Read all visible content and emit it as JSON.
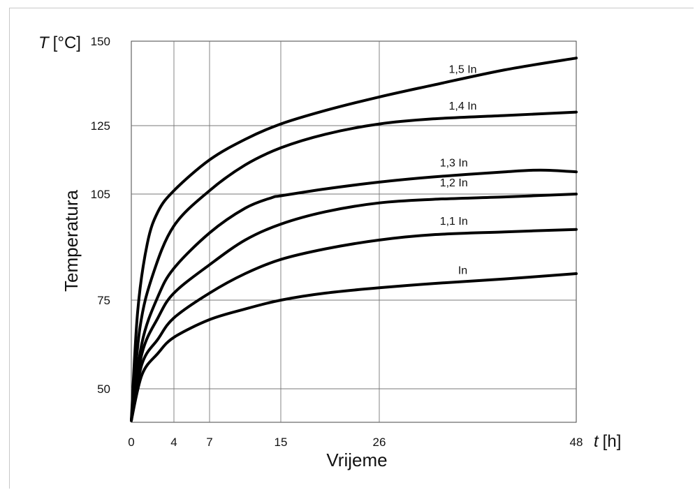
{
  "chart_data": {
    "type": "line",
    "title": "",
    "xlabel": "Vrijeme",
    "ylabel": "Temperatura",
    "x_unit": {
      "symbol": "t",
      "unit": "[h]"
    },
    "y_unit": {
      "symbol": "T",
      "unit": "[°C]"
    },
    "x_ticks": [
      0,
      4,
      7,
      15,
      26,
      48
    ],
    "y_ticks": [
      50,
      75,
      105,
      125,
      150
    ],
    "xlim": [
      0,
      48
    ],
    "ylim": [
      40.5,
      150
    ],
    "grid": true,
    "legend": "none (labels placed on curves)",
    "series": [
      {
        "name": "1,5 In",
        "points": [
          [
            0,
            41
          ],
          [
            0.6,
            72
          ],
          [
            1.5,
            91
          ],
          [
            2.5,
            100
          ],
          [
            4,
            106
          ],
          [
            7,
            115
          ],
          [
            11,
            121
          ],
          [
            15,
            125.5
          ],
          [
            20,
            129.5
          ],
          [
            26,
            133.5
          ],
          [
            32,
            137
          ],
          [
            40,
            141.5
          ],
          [
            48,
            145
          ]
        ]
      },
      {
        "name": "1,4 In",
        "points": [
          [
            0,
            41
          ],
          [
            0.8,
            67
          ],
          [
            2,
            82
          ],
          [
            4,
            96
          ],
          [
            7,
            106
          ],
          [
            11,
            113.5
          ],
          [
            15,
            118.5
          ],
          [
            20,
            122.5
          ],
          [
            26,
            125.5
          ],
          [
            32,
            127
          ],
          [
            40,
            128
          ],
          [
            48,
            129
          ]
        ]
      },
      {
        "name": "1,3 In",
        "points": [
          [
            0,
            41
          ],
          [
            1,
            63
          ],
          [
            2.5,
            76
          ],
          [
            4,
            84
          ],
          [
            7,
            94
          ],
          [
            11,
            101
          ],
          [
            14,
            104
          ],
          [
            15,
            104.5
          ],
          [
            20,
            106.5
          ],
          [
            26,
            108.5
          ],
          [
            32,
            110
          ],
          [
            40,
            111.5
          ],
          [
            44,
            112
          ],
          [
            48,
            111.5
          ]
        ]
      },
      {
        "name": "1,2 In",
        "points": [
          [
            0,
            41
          ],
          [
            1,
            60
          ],
          [
            2.5,
            70
          ],
          [
            4,
            77
          ],
          [
            7,
            85
          ],
          [
            11,
            92
          ],
          [
            15,
            96.5
          ],
          [
            20,
            100
          ],
          [
            26,
            102.5
          ],
          [
            32,
            103.5
          ],
          [
            40,
            104.2
          ],
          [
            48,
            105
          ]
        ]
      },
      {
        "name": "1,1 In",
        "points": [
          [
            0,
            41
          ],
          [
            1,
            57
          ],
          [
            2.5,
            64
          ],
          [
            4,
            70
          ],
          [
            7,
            77
          ],
          [
            11,
            82.5
          ],
          [
            15,
            86.5
          ],
          [
            20,
            89.5
          ],
          [
            26,
            92
          ],
          [
            32,
            93.5
          ],
          [
            40,
            94.3
          ],
          [
            48,
            95
          ]
        ]
      },
      {
        "name": "In",
        "points": [
          [
            0,
            41
          ],
          [
            1,
            54
          ],
          [
            2.5,
            60
          ],
          [
            4,
            64.5
          ],
          [
            7,
            69.5
          ],
          [
            11,
            72.5
          ],
          [
            15,
            75
          ],
          [
            20,
            77
          ],
          [
            26,
            78.5
          ],
          [
            32,
            79.7
          ],
          [
            40,
            81
          ],
          [
            48,
            82.5
          ]
        ]
      }
    ]
  }
}
